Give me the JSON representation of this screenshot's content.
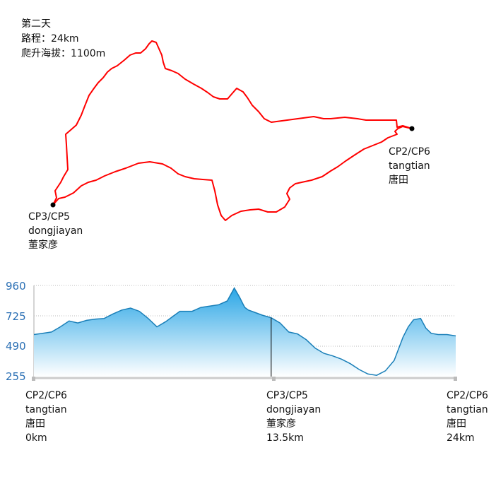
{
  "info": {
    "day": "第二天",
    "distance": "路程：24km",
    "climb": "爬升海拔：1100m"
  },
  "map": {
    "route_color": "#ff0000",
    "points": {
      "cp2": {
        "code": "CP2/CP6",
        "pinyin": "tangtian",
        "name": "唐田"
      },
      "cp3": {
        "code": "CP3/CP5",
        "pinyin": "dongjiayan",
        "name": "董家彦"
      }
    }
  },
  "profile": {
    "y_ticks": [
      "960",
      "725",
      "490",
      "255"
    ],
    "x_labels": [
      {
        "code": "CP2/CP6",
        "pinyin": "tangtian",
        "name": "唐田",
        "dist": "0km"
      },
      {
        "code": "CP3/CP5",
        "pinyin": "dongjiayan",
        "name": "董家彦",
        "dist": "13.5km"
      },
      {
        "code": "CP2/CP6",
        "pinyin": "tangtian",
        "name": "唐田",
        "dist": "24km"
      }
    ]
  },
  "chart_data": {
    "type": "area",
    "xlabel": "",
    "ylabel": "",
    "x_unit": "km",
    "xlim": [
      0,
      24
    ],
    "ylim": [
      255,
      960
    ],
    "yticks": [
      255,
      490,
      725,
      960
    ],
    "grid": true,
    "line_color": "#1a7fb8",
    "fill_top": "#2ba6e6",
    "fill_bottom": "#ffffff",
    "series": [
      {
        "x": [
          0,
          0.5,
          1.0,
          1.5,
          2.0,
          2.5,
          3.0,
          3.5,
          4.0,
          4.5,
          5.0,
          5.5,
          6.0,
          6.5,
          7.0,
          7.5,
          8.0,
          8.3,
          8.6,
          9.0,
          9.5,
          10.0,
          10.5,
          11.0,
          11.4,
          11.7,
          11.9,
          12.0,
          12.2,
          12.5,
          13.0,
          13.5,
          14.0,
          14.5,
          15.0,
          15.5,
          16.0,
          16.5,
          17.0,
          17.5,
          18.0,
          18.5,
          19.0,
          19.5,
          20.0,
          20.5,
          21.0,
          21.3,
          21.6,
          22.0,
          22.3,
          22.6,
          23.0,
          23.5,
          24.0
        ],
        "y": [
          580,
          590,
          600,
          640,
          685,
          670,
          690,
          700,
          705,
          740,
          770,
          785,
          760,
          705,
          640,
          680,
          730,
          760,
          760,
          760,
          790,
          800,
          810,
          840,
          940,
          870,
          815,
          790,
          770,
          755,
          730,
          710,
          670,
          600,
          585,
          540,
          475,
          435,
          415,
          390,
          355,
          310,
          275,
          265,
          300,
          380,
          560,
          640,
          695,
          705,
          630,
          590,
          580,
          580,
          570
        ]
      }
    ]
  }
}
